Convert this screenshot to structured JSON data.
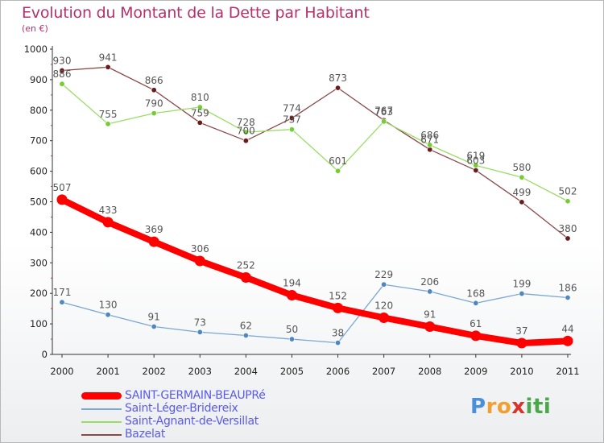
{
  "title": "Evolution du Montant de la Dette par Habitant",
  "unit_label": "(en €)",
  "logo": {
    "text": "Proxiti",
    "letters": [
      {
        "ch": "P",
        "color": "#4a90d9"
      },
      {
        "ch": "r",
        "color": "#f0a030"
      },
      {
        "ch": "o",
        "color": "#f0a030"
      },
      {
        "ch": "x",
        "color": "#d9342b"
      },
      {
        "ch": "i",
        "color": "#4aa84a"
      },
      {
        "ch": "t",
        "color": "#4aa84a"
      },
      {
        "ch": "i",
        "color": "#4aa84a"
      }
    ]
  },
  "chart_data": {
    "type": "line",
    "title": "Evolution du Montant de la Dette par Habitant",
    "ylabel": "(en €)",
    "xlabel": "",
    "x": [
      "2000",
      "2001",
      "2002",
      "2003",
      "2004",
      "2005",
      "2006",
      "2007",
      "2008",
      "2009",
      "2010",
      "2011"
    ],
    "ylim": [
      0,
      1000
    ],
    "yticks": [
      "0",
      "100",
      "200",
      "300",
      "400",
      "500",
      "600",
      "700",
      "800",
      "900",
      "1000"
    ],
    "grid": false,
    "legend_position": "bottom-left",
    "series": [
      {
        "name": "SAINT-GERMAIN-BEAUPRé",
        "color": "#ff0000",
        "marker_color": "#ff0000",
        "emphasis": true,
        "values": [
          507,
          433,
          369,
          306,
          252,
          194,
          152,
          120,
          91,
          61,
          37,
          44
        ]
      },
      {
        "name": "Saint-Léger-Bridereix",
        "color": "#7ba7d0",
        "marker_color": "#4f87c0",
        "emphasis": false,
        "values": [
          171,
          130,
          91,
          73,
          62,
          50,
          38,
          229,
          206,
          168,
          199,
          186
        ]
      },
      {
        "name": "Saint-Agnant-de-Versillat",
        "color": "#99dd66",
        "marker_color": "#77cc33",
        "emphasis": false,
        "values": [
          886,
          755,
          790,
          810,
          728,
          737,
          601,
          763,
          686,
          619,
          580,
          502
        ]
      },
      {
        "name": "Bazelat",
        "color": "#8b4a4a",
        "marker_color": "#6a1a1a",
        "emphasis": false,
        "values": [
          930,
          941,
          866,
          759,
          700,
          774,
          873,
          767,
          671,
          603,
          499,
          380
        ]
      }
    ]
  }
}
